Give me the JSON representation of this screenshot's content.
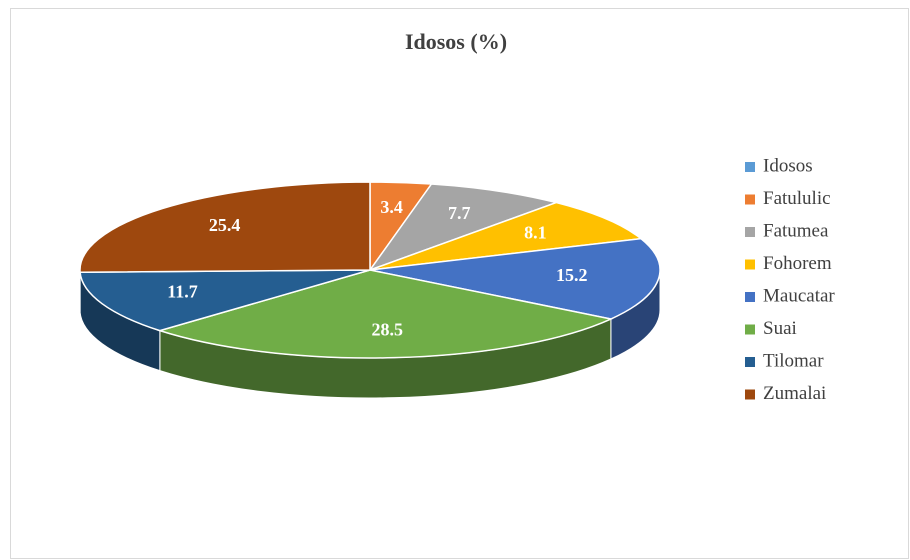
{
  "chart_data": {
    "type": "pie",
    "title": "Idosos (%)",
    "categories": [
      "Idosos",
      "Fatululic",
      "Fatumea",
      "Fohorem",
      "Maucatar",
      "Suai",
      "Tilomar",
      "Zumalai"
    ],
    "values": [
      null,
      3.4,
      7.7,
      8.1,
      15.2,
      28.5,
      11.7,
      25.4
    ],
    "colors": [
      "#5b9bd5",
      "#ed7d31",
      "#a5a5a5",
      "#ffc000",
      "#4472c4",
      "#70ad47",
      "#255e91",
      "#9e480e"
    ],
    "legend": "right"
  }
}
